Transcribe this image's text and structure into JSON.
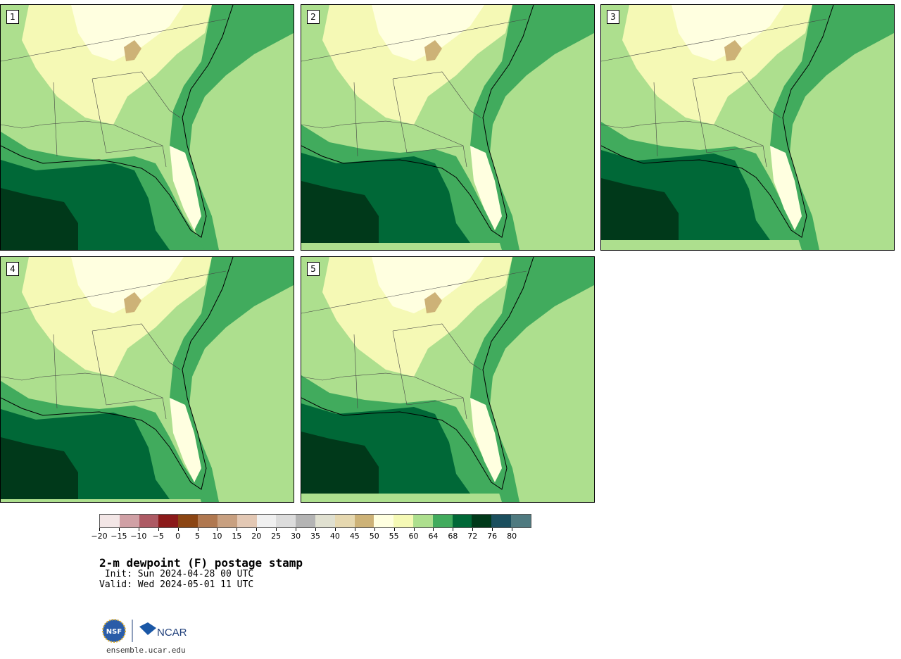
{
  "panels": [
    {
      "label": "1"
    },
    {
      "label": "2"
    },
    {
      "label": "3"
    },
    {
      "label": "4"
    },
    {
      "label": "5"
    }
  ],
  "colorbar": {
    "tick_labels": [
      "−20",
      "−15",
      "−10",
      "−5",
      "0",
      "5",
      "10",
      "15",
      "20",
      "25",
      "30",
      "35",
      "40",
      "45",
      "50",
      "55",
      "60",
      "64",
      "68",
      "72",
      "76",
      "80"
    ],
    "colors": [
      "#f3e6e6",
      "#d0a0a5",
      "#ad5a64",
      "#8b1a1a",
      "#8b4513",
      "#b07850",
      "#c8a080",
      "#e3c8b4",
      "#f0f0f0",
      "#dcdcdc",
      "#b4b4b4",
      "#e0e0d0",
      "#e6d8b0",
      "#cdb277",
      "#ffffe0",
      "#f5f9b5",
      "#addf8e",
      "#41ab5d",
      "#006837",
      "#00391a",
      "#1b4f5e",
      "#4f7a80"
    ]
  },
  "colors": {
    "pale": "#ffffe0",
    "light_yellow": "#f5f9b5",
    "light_green": "#addf8e",
    "mid_green": "#41ab5d",
    "dark_green": "#006837",
    "darkest_green": "#00391a",
    "tan": "#cdb277"
  },
  "title": "2-m dewpoint (F) postage stamp",
  "init": " Init: Sun 2024-04-28 00 UTC",
  "valid": "Valid: Wed 2024-05-01 11 UTC",
  "logos": {
    "nsf": "NSF",
    "ncar": "NCAR"
  },
  "url": "ensemble.ucar.edu"
}
